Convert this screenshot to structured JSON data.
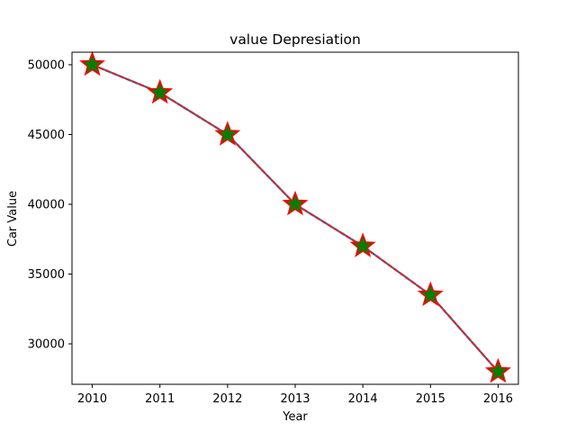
{
  "chart_data": {
    "type": "line",
    "title": "value Depresiation",
    "xlabel": "Year",
    "ylabel": "Car Value",
    "x": [
      2010,
      2011,
      2012,
      2013,
      2014,
      2015,
      2016
    ],
    "series": [
      {
        "values": [
          50000,
          48000,
          45000,
          40000,
          37000,
          33500,
          28000
        ]
      }
    ],
    "xlim": [
      2009.7,
      2016.3
    ],
    "ylim": [
      27100,
      50900
    ],
    "yticks": [
      30000,
      35000,
      40000,
      45000,
      50000
    ],
    "grid": false,
    "line_color": "#d62728",
    "line_inner_color": "#1f77b4",
    "line_style": "dashed",
    "marker": "star",
    "marker_face_color": "#008000",
    "marker_edge_color": "#ff0000"
  }
}
